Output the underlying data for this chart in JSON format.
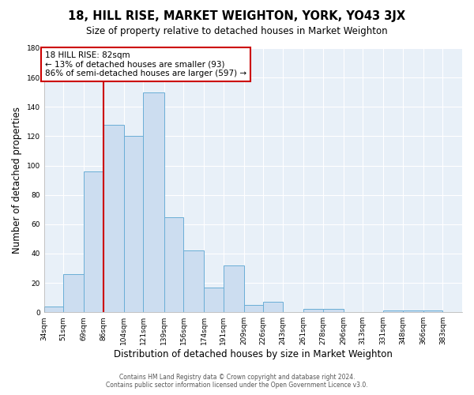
{
  "title": "18, HILL RISE, MARKET WEIGHTON, YORK, YO43 3JX",
  "subtitle": "Size of property relative to detached houses in Market Weighton",
  "xlabel": "Distribution of detached houses by size in Market Weighton",
  "ylabel": "Number of detached properties",
  "bin_labels": [
    "34sqm",
    "51sqm",
    "69sqm",
    "86sqm",
    "104sqm",
    "121sqm",
    "139sqm",
    "156sqm",
    "174sqm",
    "191sqm",
    "209sqm",
    "226sqm",
    "243sqm",
    "261sqm",
    "278sqm",
    "296sqm",
    "313sqm",
    "331sqm",
    "348sqm",
    "366sqm",
    "383sqm"
  ],
  "bar_heights": [
    4,
    26,
    96,
    128,
    120,
    150,
    65,
    42,
    17,
    32,
    5,
    7,
    0,
    2,
    2,
    0,
    0,
    1,
    1,
    1
  ],
  "bar_color": "#ccddf0",
  "bar_edge_color": "#6aaed6",
  "vline_x_idx": 3,
  "vline_label": "18 HILL RISE: 82sqm",
  "annotation_line1": "← 13% of detached houses are smaller (93)",
  "annotation_line2": "86% of semi-detached houses are larger (597) →",
  "annotation_box_color": "#ffffff",
  "annotation_box_edge": "#cc0000",
  "vline_color": "#cc0000",
  "ylim": [
    0,
    180
  ],
  "bin_edges": [
    34,
    51,
    69,
    86,
    104,
    121,
    139,
    156,
    174,
    191,
    209,
    226,
    243,
    261,
    278,
    296,
    313,
    331,
    348,
    366,
    383
  ],
  "footer_line1": "Contains HM Land Registry data © Crown copyright and database right 2024.",
  "footer_line2": "Contains public sector information licensed under the Open Government Licence v3.0.",
  "background_color": "#ffffff",
  "plot_bg_color": "#e8f0f8",
  "grid_color": "#ffffff"
}
